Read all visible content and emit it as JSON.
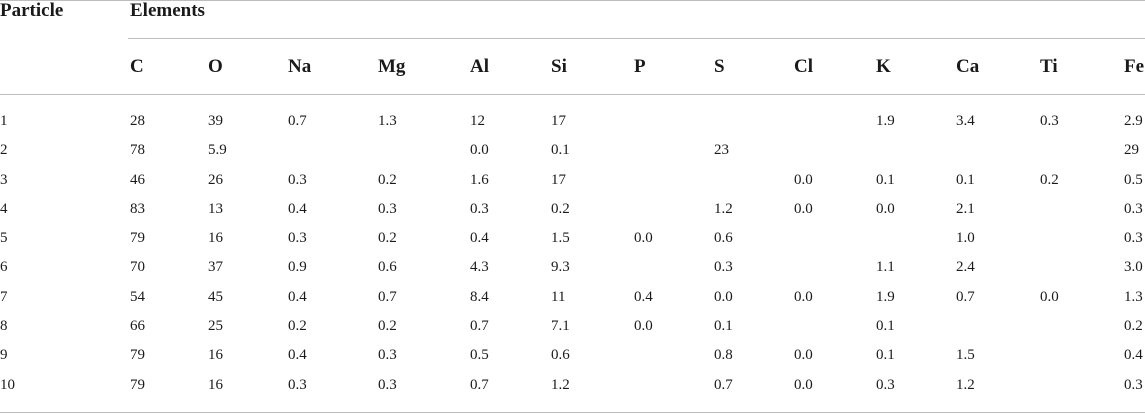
{
  "table": {
    "particle_header": "Particle",
    "elements_header": "Elements",
    "columns": [
      "C",
      "O",
      "Na",
      "Mg",
      "Al",
      "Si",
      "P",
      "S",
      "Cl",
      "K",
      "Ca",
      "Ti",
      "Fe"
    ],
    "rows": [
      {
        "particle": "1",
        "values": [
          "28",
          "39",
          "0.7",
          "1.3",
          "12",
          "17",
          "",
          "",
          "",
          "1.9",
          "3.4",
          "0.3",
          "2.9"
        ]
      },
      {
        "particle": "2",
        "values": [
          "78",
          "5.9",
          "",
          "",
          "0.0",
          "0.1",
          "",
          "23",
          "",
          "",
          "",
          "",
          "29"
        ]
      },
      {
        "particle": "3",
        "values": [
          "46",
          "26",
          "0.3",
          "0.2",
          "1.6",
          "17",
          "",
          "",
          "0.0",
          "0.1",
          "0.1",
          "0.2",
          "0.5"
        ]
      },
      {
        "particle": "4",
        "values": [
          "83",
          "13",
          "0.4",
          "0.3",
          "0.3",
          "0.2",
          "",
          "1.2",
          "0.0",
          "0.0",
          "2.1",
          "",
          "0.3"
        ]
      },
      {
        "particle": "5",
        "values": [
          "79",
          "16",
          "0.3",
          "0.2",
          "0.4",
          "1.5",
          "0.0",
          "0.6",
          "",
          "",
          "1.0",
          "",
          "0.3"
        ]
      },
      {
        "particle": "6",
        "values": [
          "70",
          "37",
          "0.9",
          "0.6",
          "4.3",
          "9.3",
          "",
          "0.3",
          "",
          "1.1",
          "2.4",
          "",
          "3.0"
        ]
      },
      {
        "particle": "7",
        "values": [
          "54",
          "45",
          "0.4",
          "0.7",
          "8.4",
          "11",
          "0.4",
          "0.0",
          "0.0",
          "1.9",
          "0.7",
          "0.0",
          "1.3"
        ]
      },
      {
        "particle": "8",
        "values": [
          "66",
          "25",
          "0.2",
          "0.2",
          "0.7",
          "7.1",
          "0.0",
          "0.1",
          "",
          "0.1",
          "",
          "",
          "0.2"
        ]
      },
      {
        "particle": "9",
        "values": [
          "79",
          "16",
          "0.4",
          "0.3",
          "0.5",
          "0.6",
          "",
          "0.8",
          "0.0",
          "0.1",
          "1.5",
          "",
          "0.4"
        ]
      },
      {
        "particle": "10",
        "values": [
          "79",
          "16",
          "0.3",
          "0.3",
          "0.7",
          "1.2",
          "",
          "0.7",
          "0.0",
          "0.3",
          "1.2",
          "",
          "0.3"
        ]
      }
    ]
  }
}
